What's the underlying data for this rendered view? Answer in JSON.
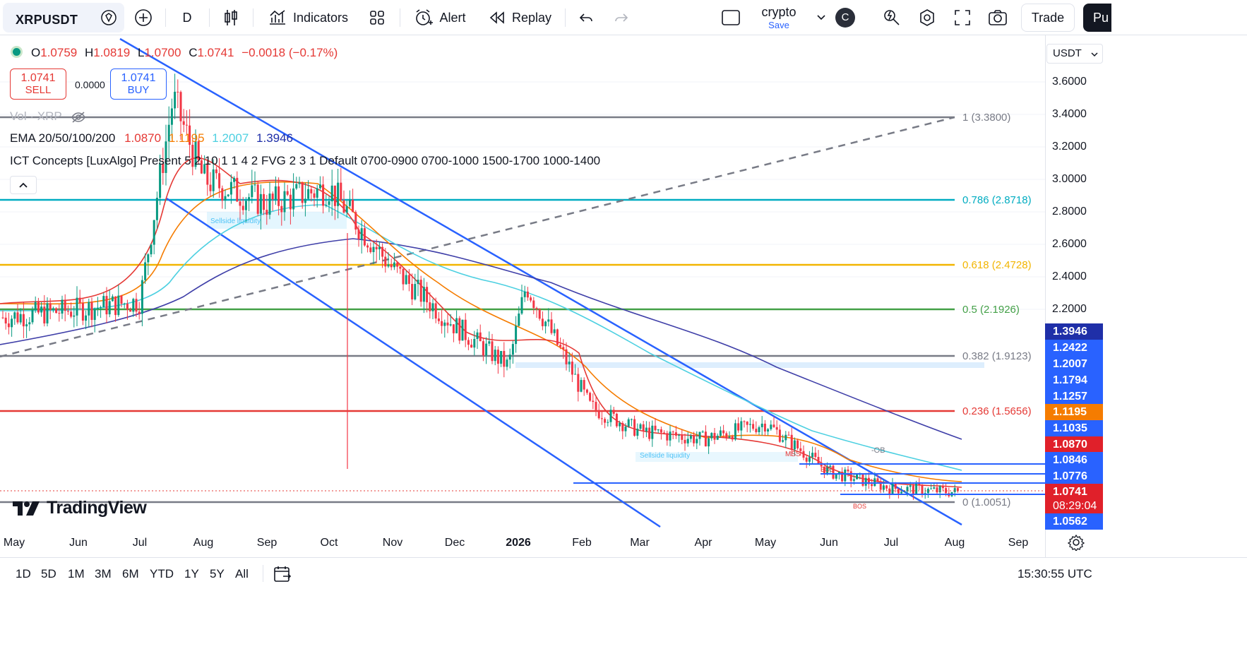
{
  "toolbar": {
    "symbol": "XRPUSDT",
    "interval": "D",
    "indicators_label": "Indicators",
    "alert_label": "Alert",
    "replay_label": "Replay",
    "layout_name": "crypto",
    "layout_save": "Save",
    "avatar_letter": "C",
    "trade_label": "Trade",
    "publish_label": "Pu"
  },
  "legend": {
    "ohlc_open_label": "O",
    "ohlc_open": "1.0759",
    "ohlc_high_label": "H",
    "ohlc_high": "1.0819",
    "ohlc_low_label": "L",
    "ohlc_low": "1.0700",
    "ohlc_close_label": "C",
    "ohlc_close": "1.0741",
    "change": "−0.0018 (−0.17%)",
    "sell_price": "1.0741",
    "sell_label": "SELL",
    "spread": "0.0000",
    "buy_price": "1.0741",
    "buy_label": "BUY",
    "volume_label": "Vol · XRP",
    "ema_label": "EMA 20/50/100/200",
    "ema20": "1.0870",
    "ema50": "1.1195",
    "ema100": "1.2007",
    "ema200": "1.3946",
    "ict_label": "ICT Concepts [LuxAlgo] Present 5 2 10 1 1 4 2 FVG 2 3 1 Default 0700-0900 0700-1000 1500-1700 1000-1400"
  },
  "currency": "USDT",
  "price_scale": [
    "3.6000",
    "3.4000",
    "3.2000",
    "3.0000",
    "2.8000",
    "2.6000",
    "2.4000",
    "2.2000"
  ],
  "price_tags": [
    {
      "value": "1.3946",
      "color": "#1f2fa8"
    },
    {
      "value": "1.2422",
      "color": "#2962ff"
    },
    {
      "value": "1.2007",
      "color": "#2962ff"
    },
    {
      "value": "1.1794",
      "color": "#2962ff"
    },
    {
      "value": "1.1257",
      "color": "#2962ff"
    },
    {
      "value": "1.1195",
      "color": "#f57c00"
    },
    {
      "value": "1.1035",
      "color": "#2962ff"
    },
    {
      "value": "1.0870",
      "color": "#e0202a"
    },
    {
      "value": "1.0846",
      "color": "#2962ff"
    },
    {
      "value": "1.0776",
      "color": "#2962ff"
    },
    {
      "value": "1.0741",
      "color": "#e0202a"
    },
    {
      "value": "08:29:04",
      "color": "#e0202a"
    },
    {
      "value": "1.0562",
      "color": "#2962ff"
    }
  ],
  "fib_labels": [
    {
      "text": "1 (3.3800)",
      "color": "#787b86"
    },
    {
      "text": "0.786 (2.8718)",
      "color": "#00acc1"
    },
    {
      "text": "0.618 (2.4728)",
      "color": "#f2b500"
    },
    {
      "text": "0.5 (2.1926)",
      "color": "#43a047"
    },
    {
      "text": "0.382 (1.9123)",
      "color": "#787b86"
    },
    {
      "text": "0.236 (1.5656)",
      "color": "#e53935"
    },
    {
      "text": "0 (1.0051)",
      "color": "#787b86"
    }
  ],
  "chart_annotations": {
    "sellside1": "Sellside liquidity",
    "sellside2": "Sellside liquidity",
    "mss": "MSS",
    "ob": "-OB",
    "bos1": "BOS",
    "bos2": "BOS"
  },
  "brand": "TradingView",
  "x_axis": [
    "May",
    "Jun",
    "Jul",
    "Aug",
    "Sep",
    "Oct",
    "Nov",
    "Dec",
    "2026",
    "Feb",
    "Mar",
    "Apr",
    "May",
    "Jun",
    "Jul",
    "Aug",
    "Sep"
  ],
  "range_buttons": [
    "1D",
    "5D",
    "1M",
    "3M",
    "6M",
    "YTD",
    "1Y",
    "5Y",
    "All"
  ],
  "clock": "15:30:55 UTC",
  "chart_data": {
    "type": "candlestick",
    "symbol": "XRPUSDT",
    "interval": "1D",
    "y_axis": {
      "unit": "USDT",
      "ylim": [
        1.0,
        3.7
      ],
      "ticks": [
        3.6,
        3.4,
        3.2,
        3.0,
        2.8,
        2.6,
        2.4,
        2.2
      ]
    },
    "x_axis_ticks": [
      "May",
      "Jun",
      "Jul",
      "Aug",
      "Sep",
      "Oct",
      "Nov",
      "Dec",
      "2026",
      "Feb",
      "Mar",
      "Apr",
      "May",
      "Jun",
      "Jul",
      "Aug",
      "Sep"
    ],
    "last_bar": {
      "open": 1.0759,
      "high": 1.0819,
      "low": 1.07,
      "close": 1.0741
    },
    "close_path_by_month": [
      {
        "month": "May",
        "price": 2.15
      },
      {
        "month": "Jun",
        "price": 2.2
      },
      {
        "month": "Jul",
        "price": 2.25
      },
      {
        "month": "Jul-mid",
        "price": 3.5
      },
      {
        "month": "Aug",
        "price": 3.0
      },
      {
        "month": "Sep",
        "price": 2.85
      },
      {
        "month": "Oct",
        "price": 2.95
      },
      {
        "month": "Nov",
        "price": 2.45
      },
      {
        "month": "Dec",
        "price": 2.1
      },
      {
        "month": "2026",
        "price": 1.85
      },
      {
        "month": "2026-early",
        "price": 2.35
      },
      {
        "month": "Feb",
        "price": 1.6
      },
      {
        "month": "Mar",
        "price": 1.45
      },
      {
        "month": "Apr",
        "price": 1.4
      },
      {
        "month": "May",
        "price": 1.5
      },
      {
        "month": "Jun",
        "price": 1.2
      },
      {
        "month": "Jul",
        "price": 1.1
      },
      {
        "month": "Aug",
        "price": 1.0741
      }
    ],
    "emas": [
      {
        "name": "EMA 20",
        "value": 1.087,
        "color": "#e53935"
      },
      {
        "name": "EMA 50",
        "value": 1.1195,
        "color": "#f57c00"
      },
      {
        "name": "EMA 100",
        "value": 1.2007,
        "color": "#4dd0e1"
      },
      {
        "name": "EMA 200",
        "value": 1.3946,
        "color": "#3f3fa8"
      }
    ],
    "fib_levels": [
      {
        "ratio": 1,
        "price": 3.38
      },
      {
        "ratio": 0.786,
        "price": 2.8718
      },
      {
        "ratio": 0.618,
        "price": 2.4728
      },
      {
        "ratio": 0.5,
        "price": 2.1926
      },
      {
        "ratio": 0.382,
        "price": 1.9123
      },
      {
        "ratio": 0.236,
        "price": 1.5656
      },
      {
        "ratio": 0,
        "price": 1.0051
      }
    ]
  }
}
